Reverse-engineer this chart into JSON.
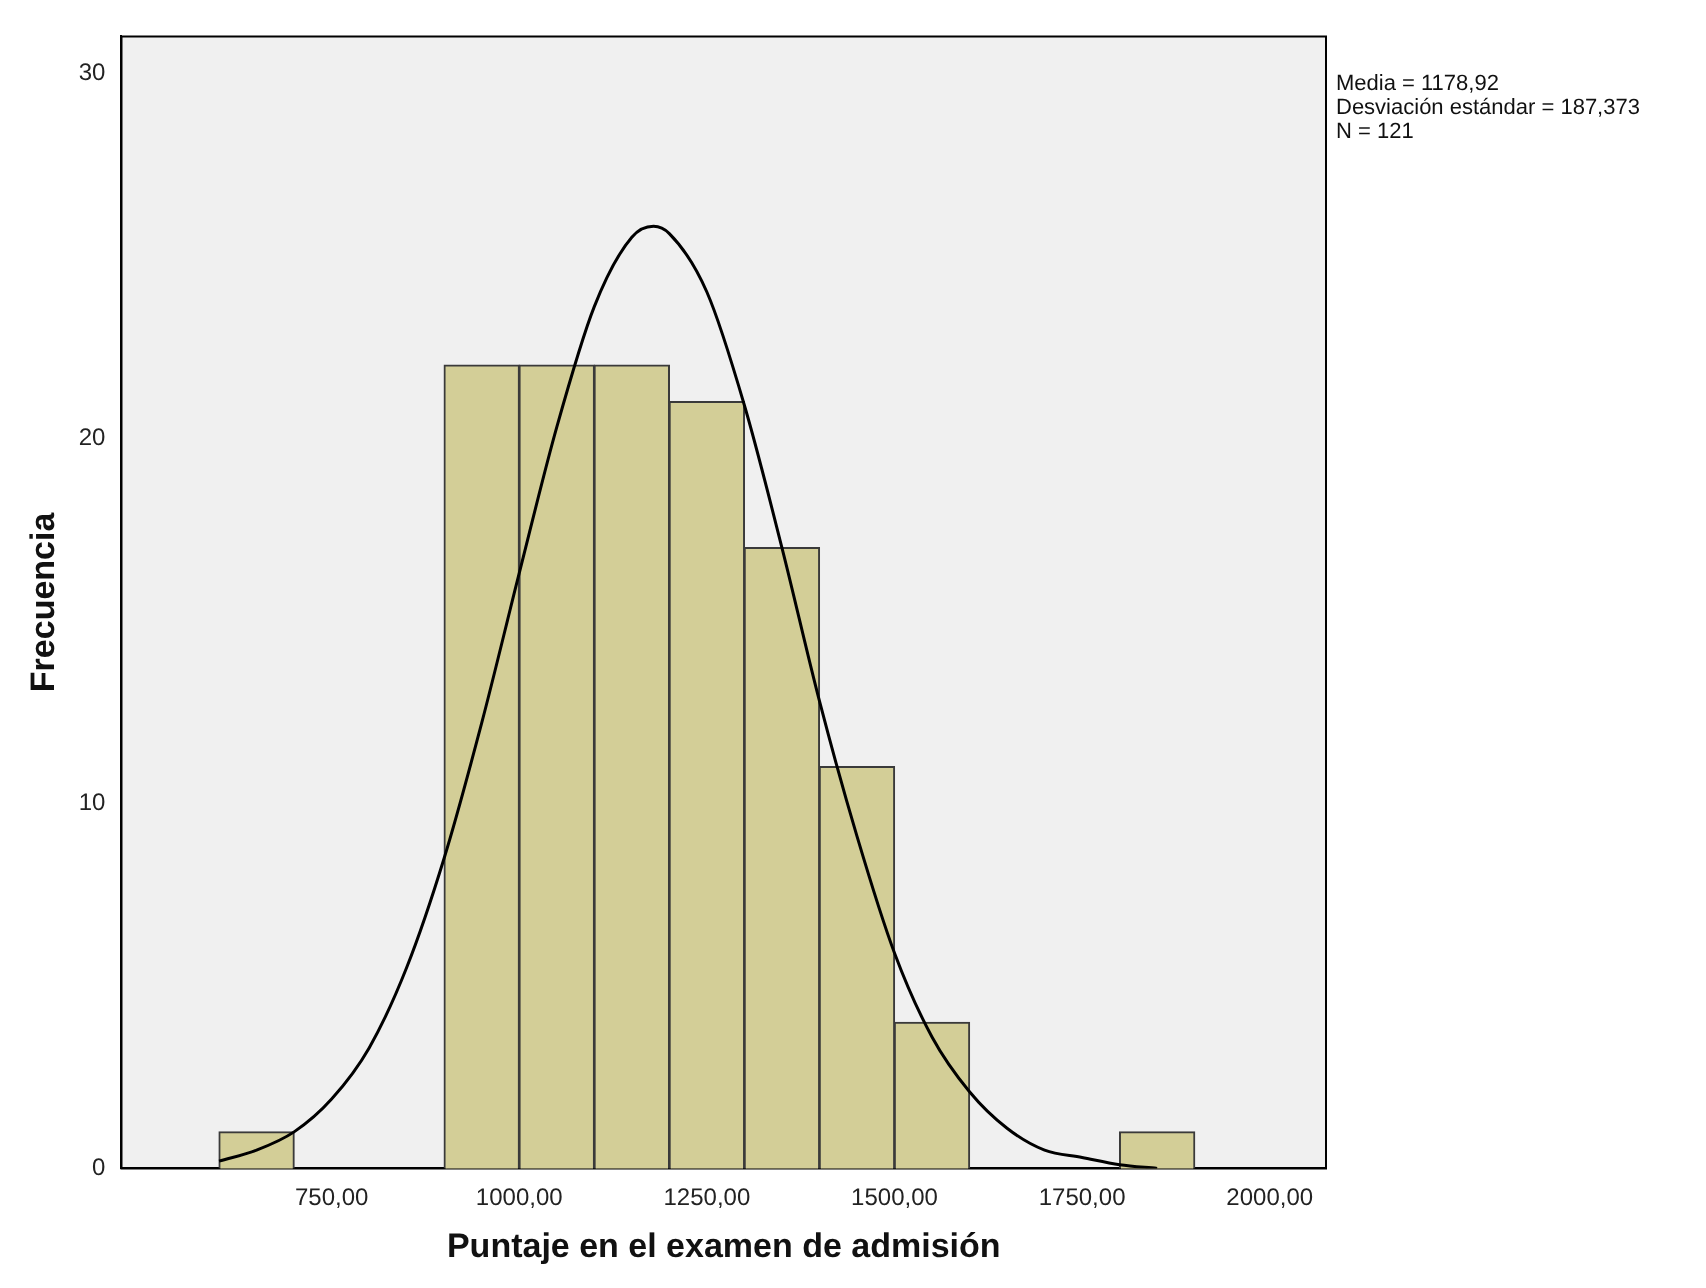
{
  "chart_data": {
    "type": "histogram",
    "xlabel": "Puntaje en el examen de admisión",
    "ylabel": "Frecuencia",
    "bins": [
      600,
      700,
      800,
      900,
      1000,
      1100,
      1200,
      1300,
      1400,
      1500,
      1600,
      1700,
      1800,
      1900
    ],
    "values": [
      1,
      0,
      0,
      22,
      22,
      22,
      21,
      17,
      11,
      4,
      0,
      0,
      1
    ],
    "color": "#d3ce97",
    "series": [
      {
        "type": "line",
        "color": "#000000",
        "x": [
          600,
          650,
          700,
          750,
          800,
          850,
          900,
          950,
          1000,
          1050,
          1100,
          1150,
          1179,
          1200,
          1250,
          1300,
          1350,
          1400,
          1450,
          1500,
          1550,
          1600,
          1650,
          1700,
          1750,
          1800,
          1850
        ],
        "values": [
          0.2,
          0.5,
          1.0,
          1.9,
          3.3,
          5.5,
          8.5,
          12.2,
          16.3,
          20.3,
          23.6,
          25.5,
          25.8,
          25.6,
          24.0,
          20.9,
          17.0,
          12.8,
          9.1,
          5.9,
          3.6,
          2.1,
          1.1,
          0.5,
          0.3,
          0.1,
          0.0
        ]
      }
    ],
    "xlim": [
      470,
      2075
    ],
    "ylim": [
      0,
      31
    ],
    "xticks": [
      {
        "value": 750,
        "label": "750,00"
      },
      {
        "value": 1000,
        "label": "1000,00"
      },
      {
        "value": 1250,
        "label": "1250,00"
      },
      {
        "value": 1500,
        "label": "1500,00"
      },
      {
        "value": 1750,
        "label": "1750,00"
      },
      {
        "value": 2000,
        "label": "2000,00"
      }
    ],
    "yticks": [
      0,
      10,
      20,
      30
    ],
    "grid": false,
    "legend": false,
    "marker": "none",
    "line_style": "solid",
    "annotations": [
      "Media = 1178,92",
      "Desviación estándar = 187,373",
      "N = 121"
    ]
  }
}
